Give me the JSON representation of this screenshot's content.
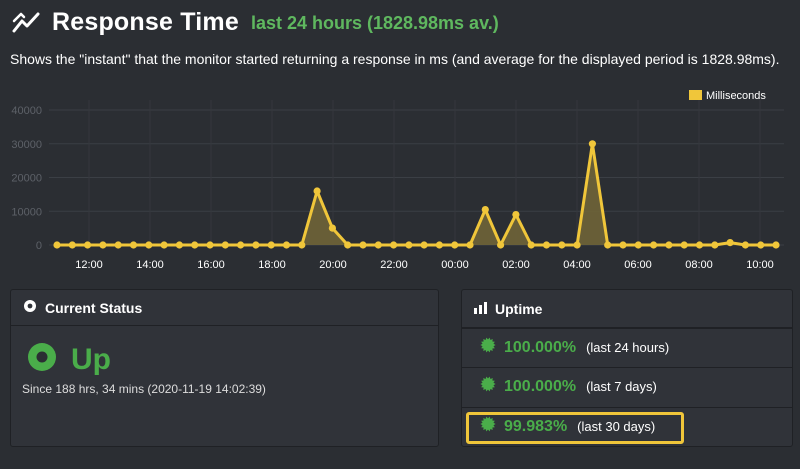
{
  "header": {
    "title": "Response Time",
    "subtitle": "last 24 hours (1828.98ms av.)",
    "icon": "line-chart-icon"
  },
  "description": "Shows the \"instant\" that the monitor started returning a response in ms (and average for the displayed period is 1828.98ms).",
  "colors": {
    "background": "#2b2e33",
    "line": "#f0c63a",
    "fill": "#6f6437",
    "up_green": "#4aad4a",
    "highlight": "#f0c63a"
  },
  "chart_data": {
    "type": "area",
    "legend": "Milliseconds",
    "legend_position": "top-right",
    "ylim": [
      0,
      40000
    ],
    "yticks": [
      "0",
      "10000",
      "20000",
      "30000",
      "40000"
    ],
    "xticks": [
      "12:00",
      "14:00",
      "16:00",
      "18:00",
      "20:00",
      "22:00",
      "00:00",
      "02:00",
      "04:00",
      "06:00",
      "08:00",
      "10:00"
    ],
    "grid": true,
    "series": [
      {
        "name": "Milliseconds",
        "values": [
          0,
          0,
          0,
          0,
          0,
          0,
          0,
          0,
          0,
          0,
          0,
          0,
          0,
          0,
          0,
          0,
          0,
          16000,
          5000,
          0,
          0,
          0,
          0,
          0,
          0,
          0,
          0,
          0,
          10500,
          0,
          9000,
          0,
          0,
          0,
          0,
          30000,
          0,
          0,
          0,
          0,
          0,
          0,
          0,
          0,
          700,
          0,
          0,
          0
        ]
      }
    ]
  },
  "current_status": {
    "title": "Current Status",
    "status": "Up",
    "since": "Since 188 hrs, 34 mins (2020-11-19 14:02:39)"
  },
  "uptime": {
    "title": "Uptime",
    "rows": [
      {
        "percent": "100.000%",
        "period": "(last 24 hours)"
      },
      {
        "percent": "100.000%",
        "period": "(last 7 days)"
      },
      {
        "percent": "99.983%",
        "period": "(last 30 days)"
      }
    ]
  }
}
